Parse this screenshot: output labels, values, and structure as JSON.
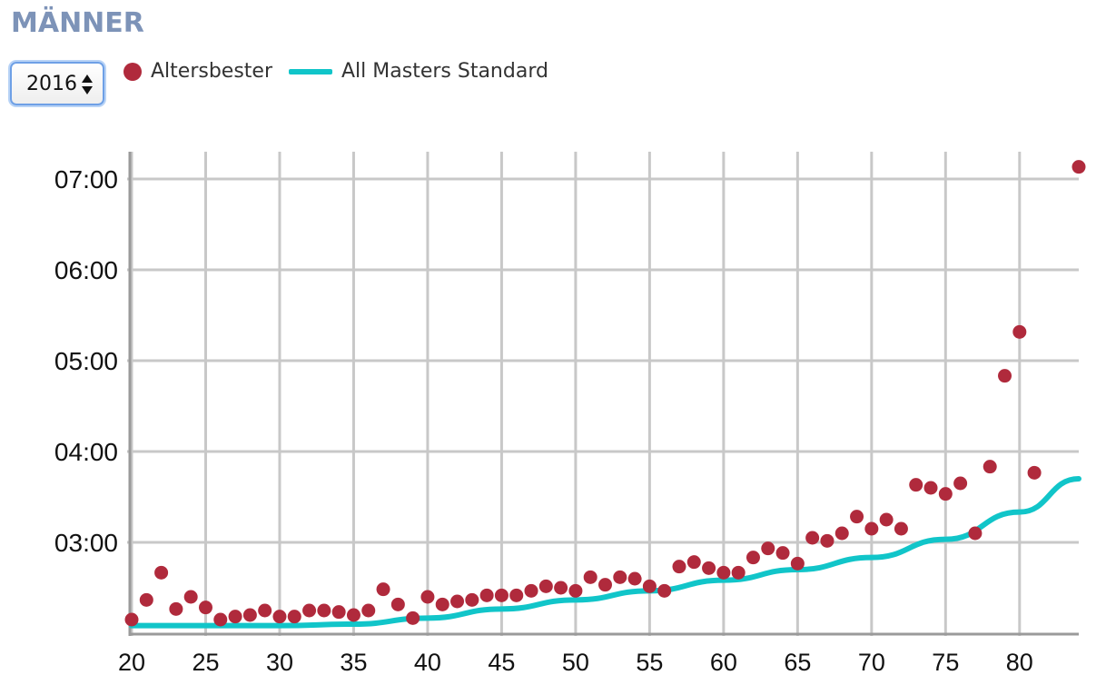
{
  "heading": "MÄNNER",
  "year_select": {
    "value": "2016"
  },
  "legend": {
    "points_label": "Altersbester",
    "line_label": "All Masters Standard"
  },
  "colors": {
    "points": "#b02a3c",
    "line": "#11c5c9",
    "grid": "#c8c8c8",
    "heading": "#7d93b8"
  },
  "chart_data": {
    "type": "scatter",
    "title": "",
    "xlabel": "",
    "ylabel": "",
    "x_ticks": [
      "20",
      "25",
      "30",
      "35",
      "40",
      "45",
      "50",
      "55",
      "60",
      "65",
      "70",
      "75",
      "80"
    ],
    "y_ticks": [
      "03:00",
      "04:00",
      "05:00",
      "06:00",
      "07:00"
    ],
    "xlim": [
      20,
      84
    ],
    "ylim_seconds": [
      120,
      440
    ],
    "grid": true,
    "legend_position": "top-left",
    "series": [
      {
        "name": "Altersbester",
        "kind": "points",
        "x": [
          20,
          21,
          22,
          23,
          24,
          25,
          26,
          27,
          28,
          29,
          30,
          31,
          32,
          33,
          34,
          35,
          36,
          37,
          38,
          39,
          40,
          41,
          42,
          43,
          44,
          45,
          46,
          47,
          48,
          49,
          50,
          51,
          52,
          53,
          54,
          55,
          56,
          57,
          58,
          59,
          60,
          61,
          62,
          63,
          64,
          65,
          66,
          67,
          68,
          69,
          70,
          71,
          72,
          73,
          74,
          75,
          76,
          77,
          78,
          79,
          80,
          81,
          84
        ],
        "y_seconds": [
          129,
          142,
          160,
          136,
          144,
          137,
          129,
          131,
          132,
          135,
          131,
          131,
          135,
          135,
          134,
          132,
          135,
          149,
          139,
          130,
          144,
          139,
          141,
          142,
          145,
          145,
          145,
          148,
          151,
          150,
          148,
          157,
          152,
          157,
          156,
          151,
          148,
          164,
          167,
          163,
          160,
          160,
          170,
          176,
          173,
          166,
          183,
          181,
          186,
          197,
          189,
          195,
          189,
          218,
          216,
          212,
          219,
          186,
          230,
          290,
          319,
          226,
          428
        ]
      },
      {
        "name": "All Masters Standard",
        "kind": "line",
        "x": [
          20,
          25,
          30,
          35,
          40,
          45,
          50,
          55,
          60,
          65,
          70,
          75,
          80,
          84
        ],
        "y_seconds": [
          125,
          125,
          125,
          126,
          130,
          136,
          142,
          148,
          155,
          162,
          170,
          182,
          200,
          222
        ]
      }
    ]
  }
}
